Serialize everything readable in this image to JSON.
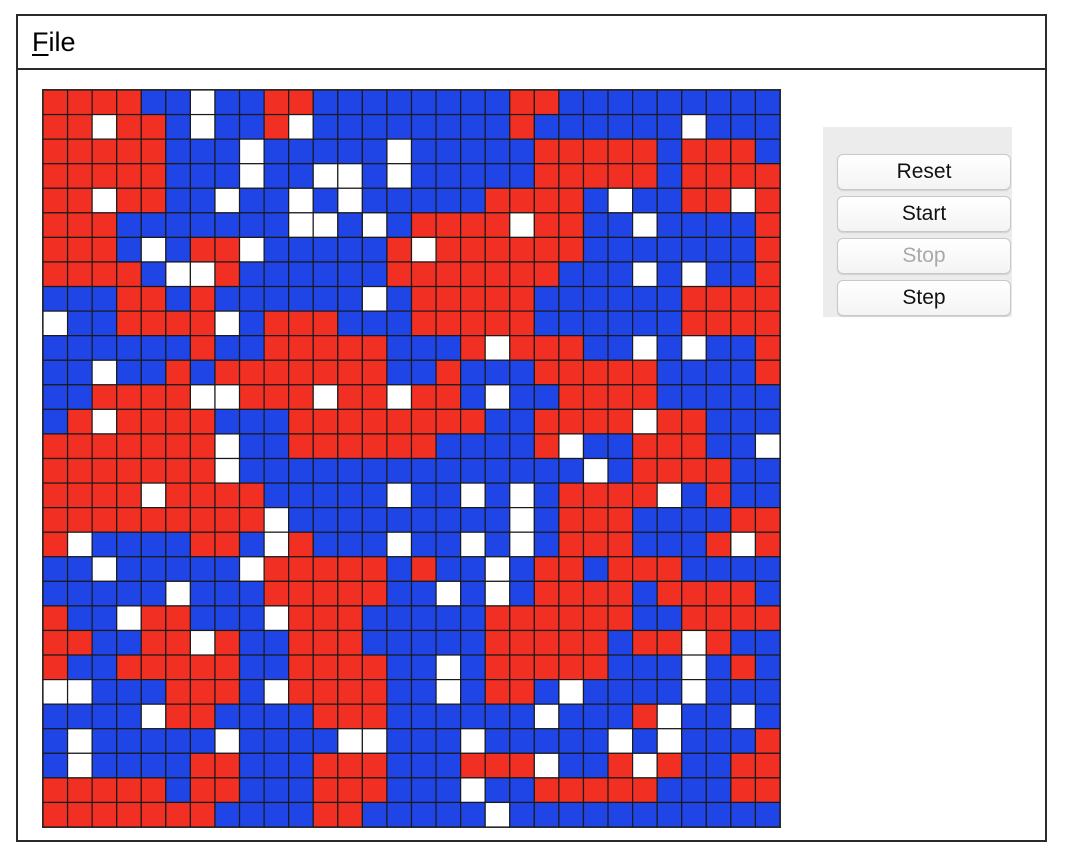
{
  "menu": {
    "file_mnemonic": "F",
    "file_rest": "ile"
  },
  "buttons": {
    "reset": "Reset",
    "start": "Start",
    "stop": "Stop",
    "step": "Step"
  },
  "buttons_state": {
    "stop_enabled": false
  },
  "colors": {
    "R": "#f12f22",
    "B": "#1f45e6",
    "W": "#ffffff"
  },
  "grid": {
    "rows": 30,
    "cols": 30,
    "cells": [
      "RRRRBBWBBRRBBBBBBBBRRBBBBBBBBB",
      "RRWRRBWBBRWBBBBBBBBRBBBBBBWBBB",
      "RRRRRBBBWBBBBBWBBBBBRRRRRBRRRB",
      "RRRRRBBBWBBWWBWBBBBBRRRRRBRRRR",
      "RRWRRBBWBBWBWBBBBBRRRRBWBBRRWR",
      "RRRBBBBBBBWWBWBRRRRWRRBBWBBBBR",
      "RRRBWBRRWBBBBBRWRRRRRRBBBBBBBR",
      "RRRRBWWRBBBBBBRRRRRRRBBBWBWBBR",
      "BBBRRBRBBBBBBWBRRRRRBBBBBBRRRR",
      "WBBRRRRWBRRRBBBRRRRRBBBBBBRRRR",
      "BBBBBBRBBRRRRRBBBRWRRRBBWBWBBR",
      "BBWBBRBRRRRRRRBBRBBBRRRRRBBBBR",
      "BBRRRRWWRRRWRRWRRBWBBRRRRBBBBB",
      "BRWRRRRBBBRRRRRRRRBBRRRRWRRBBB",
      "RRRRRRRWBBRRRRRRBBBBRWBBRRRBBW",
      "RRRRRRRWBBBBBBBBBBBBBBWBRRRRBB",
      "RRRRWRRRRBBBBBWBBWBWBRRRRWBRBB",
      "RRRRRRRRRWBBBBBBBBBWBRRRBBBBRR",
      "RWBBBBRRBWRBBBWBBWBWBRRRBBBRWR",
      "BBWBBBBBWRRRRRBRBBWBRRBRRRBBBB",
      "BBBBBWBBBRRRRRBBWBWBRRRRBRRRRB",
      "RBBWRRBBBWRRRBBBBBRRRRRRBBRRRR",
      "RRBBRRWRBBRRRBBBBBRRRRRBRRWRBB",
      "RBBRRRRRBBRRRRBBWBRRRRRBBBWBRB",
      "WWBBBRRRBWRRRRBBWBRRBWBBBBWBBB",
      "BBBBWRRBBBBRRRBBBBBBWBBBRWBBWB",
      "BWBBBBBWBBBBWWBBBWBBBBBWBWBBBR",
      "BWBBBBRRBBBRRRBBBRRRWBBRWRBBRR",
      "RRRRRBRRBBBRRRBBBWBBRRRRRBBBRR",
      "RRRRRRRBBBBRRBBBBBWBBBBBBBBBBB"
    ]
  }
}
